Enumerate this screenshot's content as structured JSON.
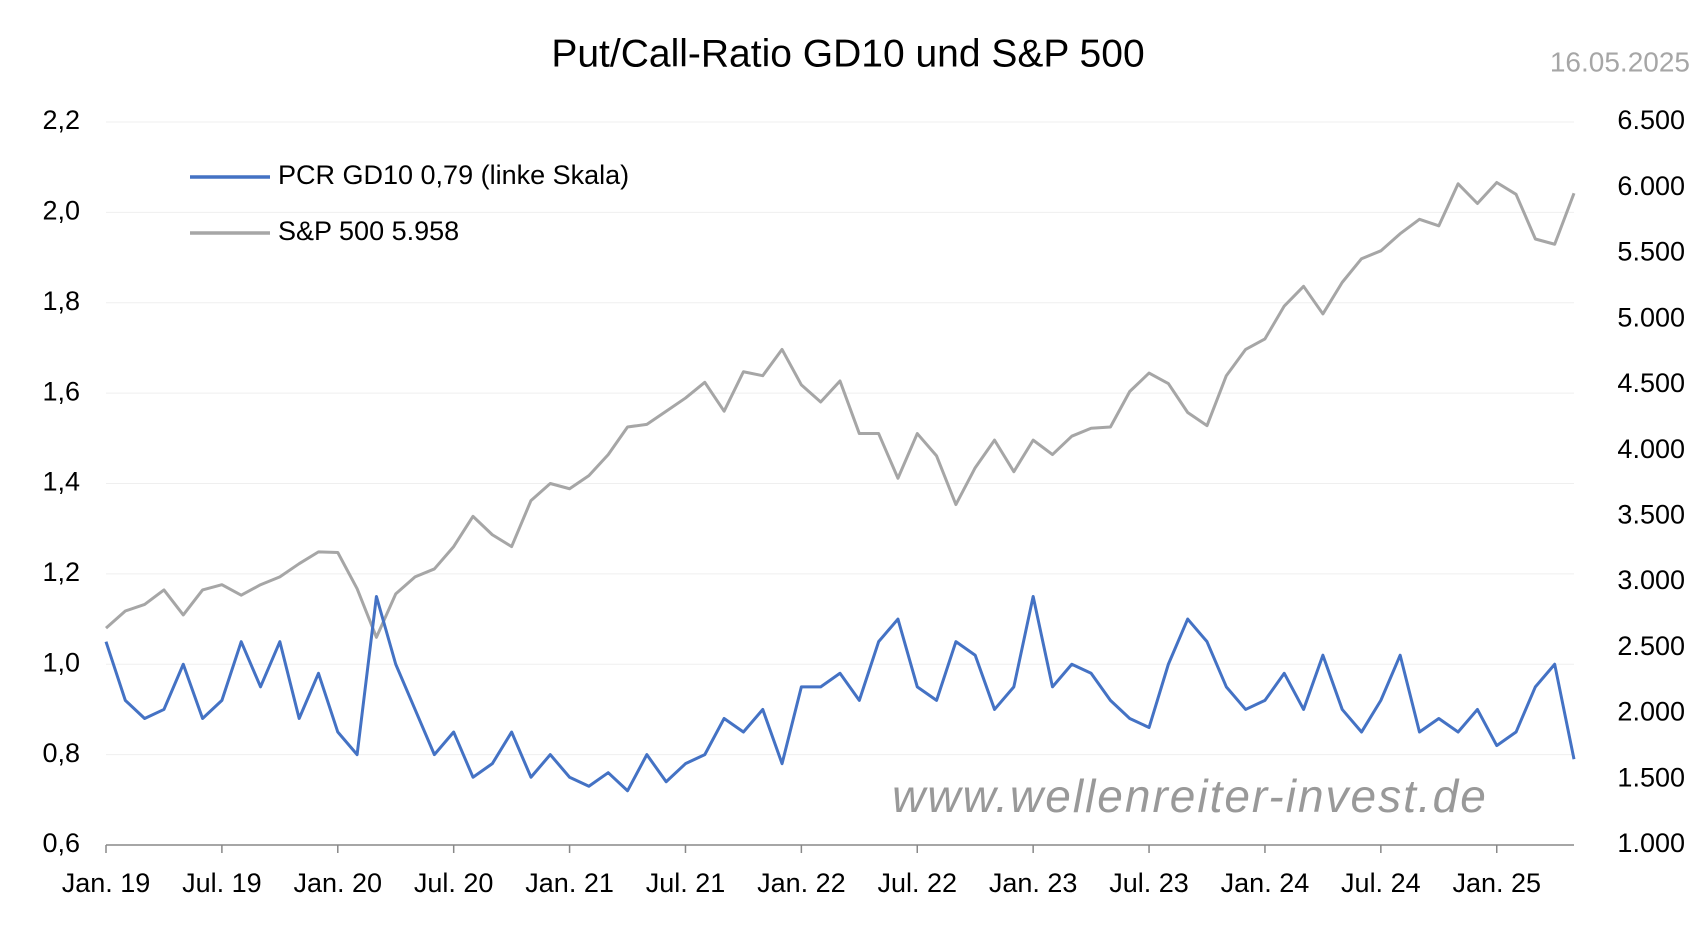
{
  "chart_data": {
    "type": "line",
    "title": "Put/Call-Ratio GD10 und S&P 500",
    "date": "16.05.2025",
    "watermark": "www.wellenreiter-invest.de",
    "x": [
      "2019-01",
      "2019-02",
      "2019-03",
      "2019-04",
      "2019-05",
      "2019-06",
      "2019-07",
      "2019-08",
      "2019-09",
      "2019-10",
      "2019-11",
      "2019-12",
      "2020-01",
      "2020-02",
      "2020-03",
      "2020-04",
      "2020-05",
      "2020-06",
      "2020-07",
      "2020-08",
      "2020-09",
      "2020-10",
      "2020-11",
      "2020-12",
      "2021-01",
      "2021-02",
      "2021-03",
      "2021-04",
      "2021-05",
      "2021-06",
      "2021-07",
      "2021-08",
      "2021-09",
      "2021-10",
      "2021-11",
      "2021-12",
      "2022-01",
      "2022-02",
      "2022-03",
      "2022-04",
      "2022-05",
      "2022-06",
      "2022-07",
      "2022-08",
      "2022-09",
      "2022-10",
      "2022-11",
      "2022-12",
      "2023-01",
      "2023-02",
      "2023-03",
      "2023-04",
      "2023-05",
      "2023-06",
      "2023-07",
      "2023-08",
      "2023-09",
      "2023-10",
      "2023-11",
      "2023-12",
      "2024-01",
      "2024-02",
      "2024-03",
      "2024-04",
      "2024-05",
      "2024-06",
      "2024-07",
      "2024-08",
      "2024-09",
      "2024-10",
      "2024-11",
      "2024-12",
      "2025-01",
      "2025-02",
      "2025-03",
      "2025-04",
      "2025-05"
    ],
    "series": [
      {
        "name": "PCR GD10 0,79 (linke Skala)",
        "color": "#4472c4",
        "axis": "y",
        "values": [
          1.05,
          0.92,
          0.88,
          0.9,
          1.0,
          0.88,
          0.92,
          1.05,
          0.95,
          1.05,
          0.88,
          0.98,
          0.85,
          0.8,
          1.15,
          1.0,
          0.9,
          0.8,
          0.85,
          0.75,
          0.78,
          0.85,
          0.75,
          0.8,
          0.75,
          0.73,
          0.76,
          0.72,
          0.8,
          0.74,
          0.78,
          0.8,
          0.88,
          0.85,
          0.9,
          0.78,
          0.95,
          0.95,
          0.98,
          0.92,
          1.05,
          1.1,
          0.95,
          0.92,
          1.05,
          1.02,
          0.9,
          0.95,
          1.15,
          0.95,
          1.0,
          0.98,
          0.92,
          0.88,
          0.86,
          1.0,
          1.1,
          1.05,
          0.95,
          0.9,
          0.92,
          0.98,
          0.9,
          1.02,
          0.9,
          0.85,
          0.92,
          1.02,
          0.85,
          0.88,
          0.85,
          0.9,
          0.82,
          0.85,
          0.95,
          1.0,
          0.79
        ]
      },
      {
        "name": "S&P 500 5.958",
        "color": "#a6a6a6",
        "axis": "y2",
        "values": [
          2650,
          2780,
          2830,
          2940,
          2750,
          2940,
          2980,
          2900,
          2980,
          3040,
          3140,
          3230,
          3225,
          2950,
          2580,
          2910,
          3040,
          3100,
          3270,
          3500,
          3360,
          3270,
          3620,
          3750,
          3710,
          3810,
          3970,
          4180,
          4200,
          4300,
          4400,
          4520,
          4300,
          4600,
          4570,
          4770,
          4500,
          4370,
          4530,
          4130,
          4130,
          3790,
          4130,
          3960,
          3590,
          3870,
          4080,
          3840,
          4080,
          3970,
          4110,
          4170,
          4180,
          4450,
          4590,
          4510,
          4290,
          4190,
          4570,
          4770,
          4850,
          5100,
          5250,
          5040,
          5280,
          5460,
          5520,
          5650,
          5760,
          5710,
          6030,
          5880,
          6040,
          5950,
          5610,
          5570,
          5958
        ]
      }
    ],
    "xlim": [
      "2019-01",
      "2025-05"
    ],
    "xticks": [
      {
        "value": "2019-01",
        "label": "Jan. 19"
      },
      {
        "value": "2019-07",
        "label": "Jul. 19"
      },
      {
        "value": "2020-01",
        "label": "Jan. 20"
      },
      {
        "value": "2020-07",
        "label": "Jul. 20"
      },
      {
        "value": "2021-01",
        "label": "Jan. 21"
      },
      {
        "value": "2021-07",
        "label": "Jul. 21"
      },
      {
        "value": "2022-01",
        "label": "Jan. 22"
      },
      {
        "value": "2022-07",
        "label": "Jul. 22"
      },
      {
        "value": "2023-01",
        "label": "Jan. 23"
      },
      {
        "value": "2023-07",
        "label": "Jul. 23"
      },
      {
        "value": "2024-01",
        "label": "Jan. 24"
      },
      {
        "value": "2024-07",
        "label": "Jul. 24"
      },
      {
        "value": "2025-01",
        "label": "Jan. 25"
      }
    ],
    "ylim": [
      0.6,
      2.2
    ],
    "yticks": [
      {
        "value": 0.6,
        "label": "0,6"
      },
      {
        "value": 0.8,
        "label": "0,8"
      },
      {
        "value": 1.0,
        "label": "1,0"
      },
      {
        "value": 1.2,
        "label": "1,2"
      },
      {
        "value": 1.4,
        "label": "1,4"
      },
      {
        "value": 1.6,
        "label": "1,6"
      },
      {
        "value": 1.8,
        "label": "1,8"
      },
      {
        "value": 2.0,
        "label": "2,0"
      },
      {
        "value": 2.2,
        "label": "2,2"
      }
    ],
    "y2lim": [
      1000,
      6500
    ],
    "y2ticks": [
      {
        "value": 1000,
        "label": "1.000"
      },
      {
        "value": 1500,
        "label": "1.500"
      },
      {
        "value": 2000,
        "label": "2.000"
      },
      {
        "value": 2500,
        "label": "2.500"
      },
      {
        "value": 3000,
        "label": "3.000"
      },
      {
        "value": 3500,
        "label": "3.500"
      },
      {
        "value": 4000,
        "label": "4.000"
      },
      {
        "value": 4500,
        "label": "4.500"
      },
      {
        "value": 5000,
        "label": "5.000"
      },
      {
        "value": 5500,
        "label": "5.500"
      },
      {
        "value": 6000,
        "label": "6.000"
      },
      {
        "value": 6500,
        "label": "6.500"
      }
    ],
    "grid": true,
    "legend": "upper left"
  }
}
